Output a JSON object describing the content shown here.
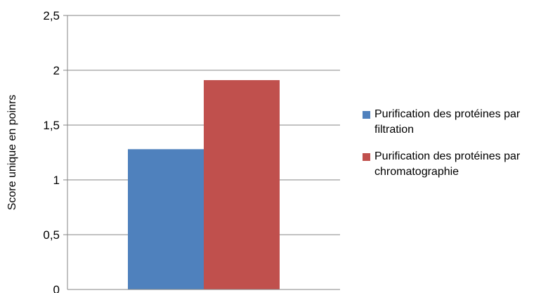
{
  "chart_data": {
    "type": "bar",
    "categories": [
      ""
    ],
    "series": [
      {
        "name": "Purification des protéines par filtration",
        "values": [
          1.28
        ],
        "color": "#4F81BD"
      },
      {
        "name": "Purification des protéines par chromatographie",
        "values": [
          1.91
        ],
        "color": "#C0504D"
      }
    ],
    "title": "",
    "xlabel": "",
    "ylabel": "Score unique en poinrs",
    "ylim": [
      0,
      2.5
    ],
    "yticks": [
      "0",
      "0,5",
      "1",
      "1,5",
      "2",
      "2,5"
    ],
    "grid": true,
    "legend_position": "right"
  }
}
